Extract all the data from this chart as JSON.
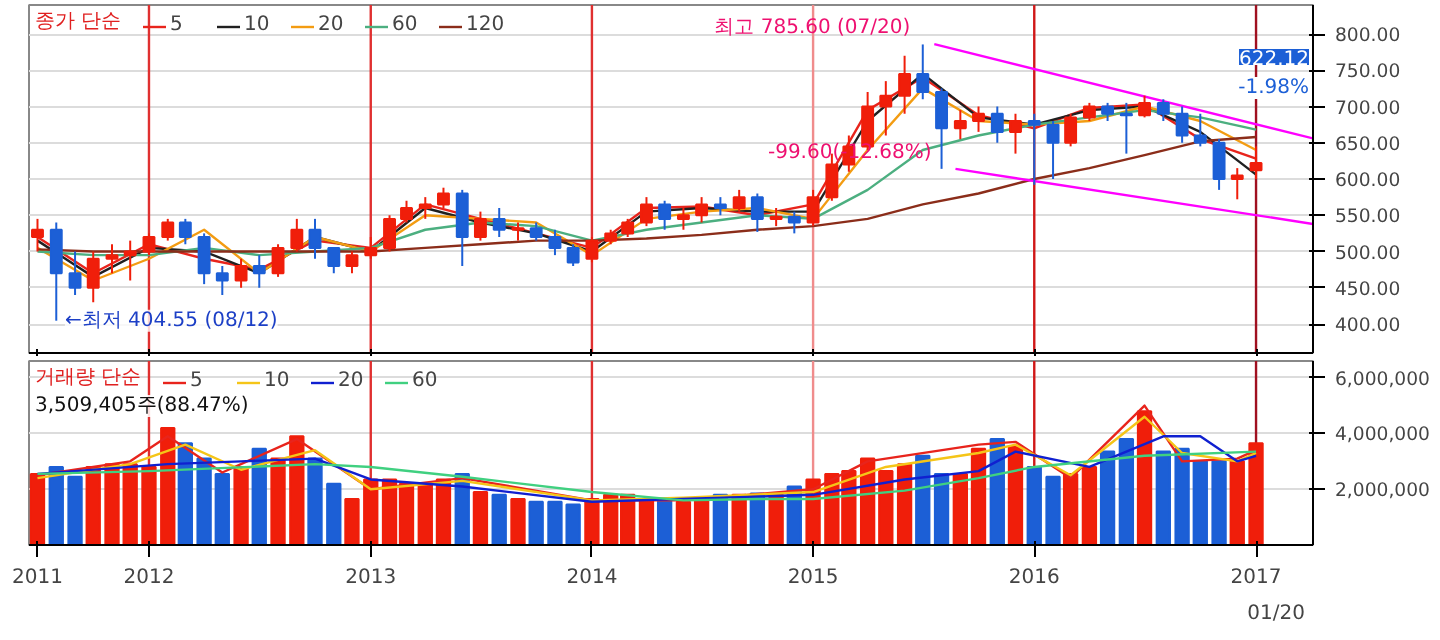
{
  "chart_data": [
    {
      "type": "candlestick",
      "legend": "top left",
      "legend_title": "종가 단순",
      "grid": "y",
      "tick_labels": "y",
      "xticks": [
        "2011-07-01",
        "2012-01-01",
        "2013-01-01",
        "2014-01-01",
        "2015-01-01",
        "2016-01-01",
        "2017-01-01"
      ],
      "xlim": [
        "2011-06-17",
        "2017-04-05"
      ],
      "ylim": [
        360,
        840
      ],
      "yticks": [
        {
          "value": 400,
          "label": "400.00"
        },
        {
          "value": 450,
          "label": "450.00"
        },
        {
          "value": 500,
          "label": "500.00"
        },
        {
          "value": 550,
          "label": "550.00"
        },
        {
          "value": 600,
          "label": "600.00"
        },
        {
          "value": 650,
          "label": "650.00"
        },
        {
          "value": 700,
          "label": "700.00"
        },
        {
          "value": 750,
          "label": "750.00"
        },
        {
          "value": 800,
          "label": "800.00"
        }
      ],
      "x": [
        "2011-07",
        "2011-08",
        "2011-09",
        "2011-10",
        "2011-11",
        "2011-12",
        "2012-01",
        "2012-02",
        "2012-03",
        "2012-04",
        "2012-05",
        "2012-06",
        "2012-07",
        "2012-08",
        "2012-09",
        "2012-10",
        "2012-11",
        "2012-12",
        "2013-01",
        "2013-02",
        "2013-03",
        "2013-04",
        "2013-05",
        "2013-06",
        "2013-07",
        "2013-08",
        "2013-09",
        "2013-10",
        "2013-11",
        "2013-12",
        "2014-01",
        "2014-02",
        "2014-03",
        "2014-04",
        "2014-05",
        "2014-06",
        "2014-07",
        "2014-08",
        "2014-09",
        "2014-10",
        "2014-11",
        "2014-12",
        "2015-01",
        "2015-02",
        "2015-03",
        "2015-04",
        "2015-05",
        "2015-06",
        "2015-07",
        "2015-08",
        "2015-09",
        "2015-10",
        "2015-11",
        "2015-12",
        "2016-01",
        "2016-02",
        "2016-03",
        "2016-04",
        "2016-05",
        "2016-06",
        "2016-07",
        "2016-08",
        "2016-09",
        "2016-10",
        "2016-11",
        "2016-12",
        "2017-01"
      ],
      "ohlc": [
        [
          520,
          545,
          500,
          530
        ],
        [
          530,
          540,
          404.55,
          470
        ],
        [
          470,
          500,
          440,
          450
        ],
        [
          450,
          500,
          430,
          490
        ],
        [
          490,
          510,
          470,
          495
        ],
        [
          495,
          515,
          460,
          500
        ],
        [
          500,
          525,
          495,
          520
        ],
        [
          520,
          545,
          515,
          540
        ],
        [
          540,
          545,
          510,
          520
        ],
        [
          520,
          525,
          455,
          470
        ],
        [
          470,
          480,
          440,
          460
        ],
        [
          460,
          490,
          450,
          480
        ],
        [
          480,
          495,
          450,
          470
        ],
        [
          470,
          510,
          465,
          505
        ],
        [
          505,
          545,
          500,
          530
        ],
        [
          530,
          545,
          490,
          505
        ],
        [
          505,
          505,
          470,
          480
        ],
        [
          480,
          500,
          470,
          495
        ],
        [
          495,
          520,
          490,
          505
        ],
        [
          505,
          550,
          500,
          545
        ],
        [
          545,
          570,
          540,
          560
        ],
        [
          560,
          575,
          545,
          565
        ],
        [
          565,
          588,
          560,
          580
        ],
        [
          580,
          585,
          480,
          520
        ],
        [
          520,
          555,
          515,
          545
        ],
        [
          545,
          560,
          520,
          530
        ],
        [
          530,
          540,
          515,
          532
        ],
        [
          532,
          540,
          515,
          520
        ],
        [
          520,
          530,
          495,
          505
        ],
        [
          505,
          510,
          480,
          485
        ],
        [
          490,
          520,
          485,
          515
        ],
        [
          515,
          530,
          510,
          525
        ],
        [
          525,
          545,
          520,
          540
        ],
        [
          540,
          575,
          535,
          565
        ],
        [
          565,
          570,
          530,
          545
        ],
        [
          545,
          560,
          530,
          550
        ],
        [
          550,
          575,
          540,
          565
        ],
        [
          565,
          575,
          550,
          560
        ],
        [
          560,
          585,
          555,
          575
        ],
        [
          575,
          580,
          527,
          545
        ],
        [
          545,
          560,
          535,
          548
        ],
        [
          548,
          555,
          525,
          540
        ],
        [
          540,
          585,
          535,
          575
        ],
        [
          575,
          635,
          570,
          620
        ],
        [
          620,
          660,
          610,
          645
        ],
        [
          645,
          720,
          640,
          700
        ],
        [
          700,
          735,
          660,
          715
        ],
        [
          715,
          770,
          690,
          745
        ],
        [
          745,
          785.6,
          710,
          720
        ],
        [
          720,
          725,
          614,
          670
        ],
        [
          670,
          695,
          655,
          680
        ],
        [
          680,
          700,
          665,
          690
        ],
        [
          690,
          700,
          650,
          665
        ],
        [
          665,
          690,
          635,
          680
        ],
        [
          680,
          690,
          592,
          675
        ],
        [
          675,
          680,
          600,
          650
        ],
        [
          650,
          690,
          645,
          685
        ],
        [
          685,
          705,
          680,
          700
        ],
        [
          700,
          705,
          680,
          690
        ],
        [
          690,
          705,
          635,
          688
        ],
        [
          688,
          715,
          685,
          705
        ],
        [
          705,
          710,
          680,
          690
        ],
        [
          690,
          700,
          650,
          660
        ],
        [
          660,
          690,
          645,
          650
        ],
        [
          650,
          655,
          585,
          600
        ],
        [
          600,
          615,
          572,
          605
        ],
        [
          612,
          645,
          600,
          622.12
        ]
      ],
      "colors": [
        "#f01e0a",
        "#1c5fd6",
        "#1c5fd6",
        "#f01e0a",
        "#f01e0a",
        "#f01e0a",
        "#f01e0a",
        "#f01e0a",
        "#1c5fd6",
        "#1c5fd6",
        "#1c5fd6",
        "#f01e0a",
        "#1c5fd6",
        "#f01e0a",
        "#f01e0a",
        "#1c5fd6",
        "#1c5fd6",
        "#f01e0a",
        "#f01e0a",
        "#f01e0a",
        "#f01e0a",
        "#f01e0a",
        "#f01e0a",
        "#1c5fd6",
        "#f01e0a",
        "#1c5fd6",
        "#f01e0a",
        "#1c5fd6",
        "#1c5fd6",
        "#1c5fd6",
        "#f01e0a",
        "#f01e0a",
        "#f01e0a",
        "#f01e0a",
        "#1c5fd6",
        "#f01e0a",
        "#f01e0a",
        "#1c5fd6",
        "#f01e0a",
        "#1c5fd6",
        "#f01e0a",
        "#1c5fd6",
        "#f01e0a",
        "#f01e0a",
        "#f01e0a",
        "#f01e0a",
        "#f01e0a",
        "#f01e0a",
        "#1c5fd6",
        "#1c5fd6",
        "#f01e0a",
        "#f01e0a",
        "#1c5fd6",
        "#f01e0a",
        "#1c5fd6",
        "#1c5fd6",
        "#f01e0a",
        "#f01e0a",
        "#1c5fd6",
        "#1c5fd6",
        "#f01e0a",
        "#1c5fd6",
        "#1c5fd6",
        "#1c5fd6",
        "#1c5fd6",
        "#f01e0a",
        "#f01e0a"
      ],
      "series": [
        {
          "type": "line",
          "name": "5",
          "color": "#e8241c",
          "x": [
            "2011-07",
            "2011-10",
            "2012-01",
            "2012-04",
            "2012-07",
            "2012-10",
            "2013-01",
            "2013-04",
            "2013-07",
            "2013-10",
            "2014-01",
            "2014-04",
            "2014-07",
            "2014-10",
            "2015-01",
            "2015-04",
            "2015-07",
            "2015-10",
            "2016-01",
            "2016-04",
            "2016-07",
            "2016-10",
            "2017-01"
          ],
          "values": [
            520,
            470,
            510,
            490,
            475,
            515,
            505,
            565,
            545,
            525,
            505,
            560,
            562,
            550,
            565,
            695,
            740,
            688,
            670,
            698,
            703,
            655,
            628
          ]
        },
        {
          "type": "line",
          "name": "10",
          "color": "#202020",
          "x": [
            "2011-07",
            "2011-10",
            "2012-01",
            "2012-04",
            "2012-07",
            "2012-10",
            "2013-01",
            "2013-04",
            "2013-07",
            "2013-10",
            "2014-01",
            "2014-04",
            "2014-07",
            "2014-10",
            "2015-01",
            "2015-04",
            "2015-07",
            "2015-10",
            "2016-01",
            "2016-04",
            "2016-07",
            "2016-10",
            "2017-01"
          ],
          "values": [
            515,
            465,
            505,
            500,
            470,
            520,
            500,
            560,
            540,
            525,
            500,
            555,
            560,
            555,
            555,
            680,
            745,
            685,
            675,
            695,
            700,
            665,
            606
          ]
        },
        {
          "type": "line",
          "name": "20",
          "color": "#f39c12",
          "x": [
            "2011-07",
            "2011-10",
            "2012-01",
            "2012-04",
            "2012-07",
            "2012-10",
            "2013-01",
            "2013-04",
            "2013-07",
            "2013-10",
            "2014-01",
            "2014-04",
            "2014-07",
            "2014-10",
            "2015-01",
            "2015-04",
            "2015-07",
            "2015-10",
            "2016-01",
            "2016-04",
            "2016-07",
            "2016-10",
            "2017-01"
          ],
          "values": [
            505,
            460,
            490,
            530,
            470,
            520,
            500,
            550,
            545,
            540,
            495,
            545,
            555,
            560,
            545,
            640,
            725,
            680,
            675,
            680,
            700,
            680,
            640
          ]
        },
        {
          "type": "line",
          "name": "60",
          "color": "#4caf80",
          "x": [
            "2011-07",
            "2011-10",
            "2012-01",
            "2012-04",
            "2012-07",
            "2012-10",
            "2013-01",
            "2013-04",
            "2013-07",
            "2013-10",
            "2014-01",
            "2014-04",
            "2014-07",
            "2014-10",
            "2015-01",
            "2015-04",
            "2015-07",
            "2015-10",
            "2016-01",
            "2016-04",
            "2016-07",
            "2016-10",
            "2017-01"
          ],
          "values": [
            500,
            495,
            495,
            505,
            495,
            500,
            505,
            530,
            540,
            535,
            515,
            530,
            540,
            550,
            545,
            585,
            640,
            660,
            675,
            685,
            695,
            685,
            668
          ]
        },
        {
          "type": "line",
          "name": "120",
          "color": "#8b2d1a",
          "x": [
            "2011-07",
            "2011-10",
            "2012-01",
            "2012-04",
            "2012-07",
            "2012-10",
            "2013-01",
            "2013-04",
            "2013-07",
            "2013-10",
            "2014-01",
            "2014-04",
            "2014-07",
            "2014-10",
            "2015-01",
            "2015-04",
            "2015-07",
            "2015-10",
            "2016-01",
            "2016-04",
            "2016-07",
            "2016-10",
            "2017-01"
          ],
          "values": [
            503,
            500,
            500,
            500,
            500,
            500,
            500,
            505,
            510,
            515,
            515,
            518,
            523,
            530,
            535,
            545,
            565,
            580,
            600,
            615,
            633,
            652,
            658
          ]
        },
        {
          "type": "line",
          "color": "#ff00ff",
          "x": [
            "2015-07-20",
            "2017-04-05"
          ],
          "values": [
            786,
            656
          ]
        },
        {
          "type": "line",
          "color": "#ff00ff",
          "x": [
            "2015-08-24",
            "2017-04-05"
          ],
          "values": [
            614,
            538
          ]
        }
      ],
      "ref_lines": [
        {
          "axis": "x",
          "value": "2012-01-01",
          "color": "#e03030"
        },
        {
          "axis": "x",
          "value": "2013-01-01",
          "color": "#e03030"
        },
        {
          "axis": "x",
          "value": "2014-01-01",
          "color": "#e03030"
        },
        {
          "axis": "x",
          "value": "2015-01-01",
          "color": "#f08c8c"
        },
        {
          "axis": "x",
          "value": "2016-01-01",
          "color": "#d01818"
        },
        {
          "axis": "x",
          "value": "2017-01-01",
          "color": "#a01020"
        }
      ],
      "annotations": [
        {
          "text": "최고 785.60 (07/20)",
          "x": "2015-07-20",
          "y": 785.6
        },
        {
          "text": "-99.60(-12.68%)",
          "x": "2015-08-24",
          "y": 614
        },
        {
          "text": "←최저 404.55 (08/12)",
          "x": "2011-08-12",
          "y": 404.55
        },
        "622.12",
        "-1.98%"
      ]
    },
    {
      "type": "bar",
      "legend": "top left",
      "legend_title": "거래량 단순",
      "grid": "y",
      "xlim": [
        "2011-06-17",
        "2017-04-05"
      ],
      "ylim": [
        0,
        6600000
      ],
      "yticks": [
        {
          "value": 2000000,
          "label": "2,000,000"
        },
        {
          "value": 4000000,
          "label": "4,000,000"
        },
        {
          "value": 6000000,
          "label": "6,000,000"
        }
      ],
      "xticks": [
        {
          "value": "2011-07-01",
          "label": "2011"
        },
        {
          "value": "2012-01-01",
          "label": "2012"
        },
        {
          "value": "2013-01-01",
          "label": "2013"
        },
        {
          "value": "2014-01-01",
          "label": "2014"
        },
        {
          "value": "2015-01-01",
          "label": "2015"
        },
        {
          "value": "2016-01-01",
          "label": "2016"
        },
        {
          "value": "2017-01-01",
          "label": "2017"
        }
      ],
      "x": [
        "2011-07",
        "2011-08",
        "2011-09",
        "2011-10",
        "2011-11",
        "2011-12",
        "2012-01",
        "2012-02",
        "2012-03",
        "2012-04",
        "2012-05",
        "2012-06",
        "2012-07",
        "2012-08",
        "2012-09",
        "2012-10",
        "2012-11",
        "2012-12",
        "2013-01",
        "2013-02",
        "2013-03",
        "2013-04",
        "2013-05",
        "2013-06",
        "2013-07",
        "2013-08",
        "2013-09",
        "2013-10",
        "2013-11",
        "2013-12",
        "2014-01",
        "2014-02",
        "2014-03",
        "2014-04",
        "2014-05",
        "2014-06",
        "2014-07",
        "2014-08",
        "2014-09",
        "2014-10",
        "2014-11",
        "2014-12",
        "2015-01",
        "2015-02",
        "2015-03",
        "2015-04",
        "2015-05",
        "2015-06",
        "2015-07",
        "2015-08",
        "2015-09",
        "2015-10",
        "2015-11",
        "2015-12",
        "2016-01",
        "2016-02",
        "2016-03",
        "2016-04",
        "2016-05",
        "2016-06",
        "2016-07",
        "2016-08",
        "2016-09",
        "2016-10",
        "2016-11",
        "2016-12",
        "2017-01"
      ],
      "values": [
        2550000,
        2800000,
        2450000,
        2800000,
        2900000,
        2900000,
        2800000,
        4200000,
        3650000,
        3100000,
        2550000,
        2800000,
        3450000,
        3100000,
        3900000,
        3100000,
        2200000,
        1650000,
        2350000,
        2350000,
        2200000,
        2200000,
        2350000,
        2550000,
        1900000,
        1800000,
        1650000,
        1550000,
        1550000,
        1450000,
        1650000,
        1800000,
        1800000,
        1650000,
        1650000,
        1550000,
        1650000,
        1800000,
        1800000,
        1850000,
        1800000,
        2100000,
        2350000,
        2550000,
        2650000,
        3100000,
        2650000,
        2900000,
        3200000,
        2550000,
        2550000,
        3450000,
        3800000,
        3550000,
        2800000,
        2450000,
        2550000,
        2800000,
        3350000,
        3800000,
        4800000,
        3350000,
        3450000,
        3000000,
        3000000,
        3000000,
        3650000
      ],
      "colors": [
        "#f01e0a",
        "#1c5fd6",
        "#1c5fd6",
        "#f01e0a",
        "#f01e0a",
        "#f01e0a",
        "#f01e0a",
        "#f01e0a",
        "#1c5fd6",
        "#1c5fd6",
        "#1c5fd6",
        "#f01e0a",
        "#1c5fd6",
        "#f01e0a",
        "#f01e0a",
        "#1c5fd6",
        "#1c5fd6",
        "#f01e0a",
        "#f01e0a",
        "#f01e0a",
        "#f01e0a",
        "#f01e0a",
        "#f01e0a",
        "#1c5fd6",
        "#f01e0a",
        "#1c5fd6",
        "#f01e0a",
        "#1c5fd6",
        "#1c5fd6",
        "#1c5fd6",
        "#f01e0a",
        "#f01e0a",
        "#f01e0a",
        "#f01e0a",
        "#1c5fd6",
        "#f01e0a",
        "#f01e0a",
        "#1c5fd6",
        "#f01e0a",
        "#1c5fd6",
        "#f01e0a",
        "#1c5fd6",
        "#f01e0a",
        "#f01e0a",
        "#f01e0a",
        "#f01e0a",
        "#f01e0a",
        "#f01e0a",
        "#1c5fd6",
        "#1c5fd6",
        "#f01e0a",
        "#f01e0a",
        "#1c5fd6",
        "#f01e0a",
        "#1c5fd6",
        "#1c5fd6",
        "#f01e0a",
        "#f01e0a",
        "#1c5fd6",
        "#1c5fd6",
        "#f01e0a",
        "#1c5fd6",
        "#1c5fd6",
        "#1c5fd6",
        "#1c5fd6",
        "#f01e0a",
        "#f01e0a"
      ],
      "series": [
        {
          "type": "line",
          "name": "5",
          "color": "#e8241c",
          "x": [
            "2011-07",
            "2011-12",
            "2012-02",
            "2012-05",
            "2012-09",
            "2013-01",
            "2013-06",
            "2014-01",
            "2014-06",
            "2015-01",
            "2015-04",
            "2015-10",
            "2015-12",
            "2016-03",
            "2016-07",
            "2016-09",
            "2016-12",
            "2017-01"
          ],
          "values": [
            2500000,
            3000000,
            3900000,
            2600000,
            3800000,
            2000000,
            2400000,
            1600000,
            1600000,
            2000000,
            3000000,
            3600000,
            3700000,
            2400000,
            5000000,
            3000000,
            3100000,
            3400000
          ]
        },
        {
          "type": "line",
          "name": "10",
          "color": "#f5c518",
          "x": [
            "2011-07",
            "2011-12",
            "2012-03",
            "2012-06",
            "2012-10",
            "2013-01",
            "2013-06",
            "2014-01",
            "2014-06",
            "2015-01",
            "2015-05",
            "2015-10",
            "2015-12",
            "2016-03",
            "2016-07",
            "2016-09",
            "2016-12",
            "2017-01"
          ],
          "values": [
            2400000,
            2900000,
            3600000,
            2700000,
            3400000,
            2000000,
            2300000,
            1600000,
            1700000,
            1900000,
            2800000,
            3300000,
            3600000,
            2500000,
            4600000,
            3300000,
            3000000,
            3300000
          ]
        },
        {
          "type": "line",
          "name": "20",
          "color": "#1020d0",
          "x": [
            "2011-07",
            "2012-02",
            "2012-06",
            "2012-10",
            "2013-01",
            "2013-06",
            "2014-01",
            "2015-01",
            "2015-06",
            "2015-10",
            "2015-12",
            "2016-04",
            "2016-08",
            "2016-10",
            "2016-12",
            "2017-01"
          ],
          "values": [
            2550000,
            2900000,
            3000000,
            3100000,
            2350000,
            2100000,
            1550000,
            1800000,
            2350000,
            2650000,
            3350000,
            2800000,
            3900000,
            3900000,
            3000000,
            3200000
          ]
        },
        {
          "type": "line",
          "name": "60",
          "color": "#40d080",
          "x": [
            "2011-07",
            "2012-01",
            "2012-10",
            "2013-01",
            "2013-06",
            "2014-01",
            "2014-06",
            "2014-10",
            "2015-01",
            "2015-06",
            "2015-10",
            "2016-01",
            "2016-07",
            "2017-01"
          ],
          "values": [
            2550000,
            2650000,
            2900000,
            2800000,
            2450000,
            1900000,
            1600000,
            1650000,
            1650000,
            1950000,
            2400000,
            2800000,
            3200000,
            3350000
          ]
        }
      ],
      "ref_lines": [
        {
          "axis": "x",
          "value": "2012-01-01",
          "color": "#e03030"
        },
        {
          "axis": "x",
          "value": "2013-01-01",
          "color": "#e03030"
        },
        {
          "axis": "x",
          "value": "2014-01-01",
          "color": "#e03030"
        },
        {
          "axis": "x",
          "value": "2015-01-01",
          "color": "#f08c8c"
        },
        {
          "axis": "x",
          "value": "2016-01-01",
          "color": "#d01818"
        },
        {
          "axis": "x",
          "value": "2017-01-01",
          "color": "#a01020"
        }
      ],
      "annotations": [
        "3,509,405주(88.47%)",
        "01/20"
      ]
    }
  ]
}
